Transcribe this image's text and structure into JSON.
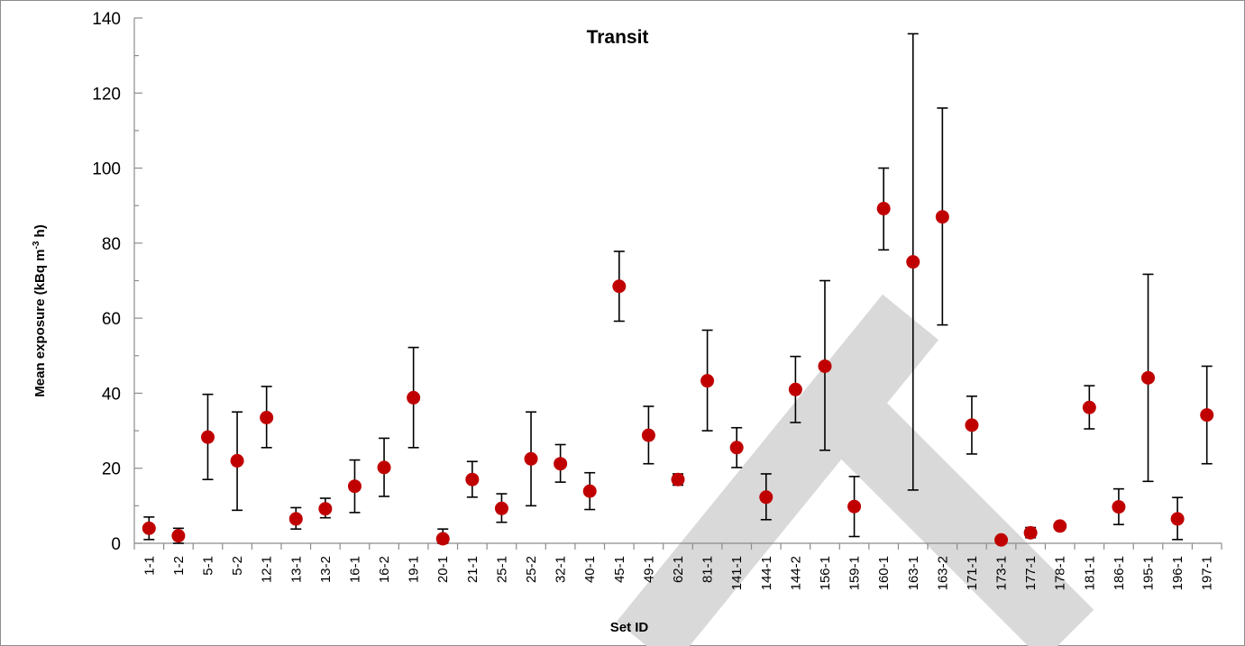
{
  "chart_data": {
    "type": "scatter",
    "title": "Transit",
    "xlabel": "Set  ID",
    "ylabel": "Mean exposure (kBq m",
    "ylabel_sup": "-3",
    "ylabel_end": " h)",
    "ylim": [
      0,
      140
    ],
    "yticks": [
      0,
      20,
      40,
      60,
      80,
      100,
      120,
      140
    ],
    "grid": false,
    "marker_color": "#c00000",
    "errorbar_color": "#000000",
    "watermark_color": "#d9d9d9",
    "points": [
      {
        "id": "1-1",
        "y": 4,
        "lo": 1,
        "hi": 7
      },
      {
        "id": "1-2",
        "y": 2,
        "lo": 0,
        "hi": 4
      },
      {
        "id": "5-1",
        "y": 28.3,
        "lo": 17,
        "hi": 39.7
      },
      {
        "id": "5-2",
        "y": 22,
        "lo": 8.8,
        "hi": 35
      },
      {
        "id": "12-1",
        "y": 33.5,
        "lo": 25.5,
        "hi": 41.8
      },
      {
        "id": "13-1",
        "y": 6.5,
        "lo": 3.8,
        "hi": 9.5
      },
      {
        "id": "13-2",
        "y": 9.2,
        "lo": 6.8,
        "hi": 12
      },
      {
        "id": "16-1",
        "y": 15.2,
        "lo": 8.2,
        "hi": 22.2
      },
      {
        "id": "16-2",
        "y": 20.2,
        "lo": 12.5,
        "hi": 28
      },
      {
        "id": "19-1",
        "y": 38.8,
        "lo": 25.5,
        "hi": 52.2
      },
      {
        "id": "20-1",
        "y": 1.2,
        "lo": 0,
        "hi": 3.8
      },
      {
        "id": "21-1",
        "y": 17,
        "lo": 12.3,
        "hi": 21.8
      },
      {
        "id": "25-1",
        "y": 9.3,
        "lo": 5.6,
        "hi": 13.2
      },
      {
        "id": "25-2",
        "y": 22.5,
        "lo": 10,
        "hi": 35
      },
      {
        "id": "32-1",
        "y": 21.2,
        "lo": 16.3,
        "hi": 26.3
      },
      {
        "id": "40-1",
        "y": 13.9,
        "lo": 9,
        "hi": 18.8
      },
      {
        "id": "45-1",
        "y": 68.5,
        "lo": 59.2,
        "hi": 77.8
      },
      {
        "id": "49-1",
        "y": 28.8,
        "lo": 21.2,
        "hi": 36.5
      },
      {
        "id": "62-1",
        "y": 17,
        "lo": 15.5,
        "hi": 18.5
      },
      {
        "id": "81-1",
        "y": 43.3,
        "lo": 30,
        "hi": 56.8
      },
      {
        "id": "141-1",
        "y": 25.5,
        "lo": 20.2,
        "hi": 30.8
      },
      {
        "id": "144-1",
        "y": 12.3,
        "lo": 6.3,
        "hi": 18.5
      },
      {
        "id": "144-2",
        "y": 41,
        "lo": 32.2,
        "hi": 49.8
      },
      {
        "id": "156-1",
        "y": 47.2,
        "lo": 24.8,
        "hi": 70
      },
      {
        "id": "159-1",
        "y": 9.8,
        "lo": 1.8,
        "hi": 17.8
      },
      {
        "id": "160-1",
        "y": 89.2,
        "lo": 78.2,
        "hi": 100
      },
      {
        "id": "163-1",
        "y": 75,
        "lo": 14.2,
        "hi": 135.8
      },
      {
        "id": "163-2",
        "y": 87,
        "lo": 58.2,
        "hi": 116
      },
      {
        "id": "171-1",
        "y": 31.5,
        "lo": 23.8,
        "hi": 39.2
      },
      {
        "id": "173-1",
        "y": 0.9,
        "lo": 0.6,
        "hi": 1.2
      },
      {
        "id": "177-1",
        "y": 2.8,
        "lo": 1.5,
        "hi": 4.2
      },
      {
        "id": "178-1",
        "y": 4.6,
        "lo": 4.3,
        "hi": 4.9
      },
      {
        "id": "181-1",
        "y": 36.2,
        "lo": 30.5,
        "hi": 42
      },
      {
        "id": "186-1",
        "y": 9.7,
        "lo": 5,
        "hi": 14.5
      },
      {
        "id": "195-1",
        "y": 44.1,
        "lo": 16.5,
        "hi": 71.7
      },
      {
        "id": "196-1",
        "y": 6.5,
        "lo": 1,
        "hi": 12.2
      },
      {
        "id": "197-1",
        "y": 34.2,
        "lo": 21.2,
        "hi": 47.2
      }
    ]
  }
}
